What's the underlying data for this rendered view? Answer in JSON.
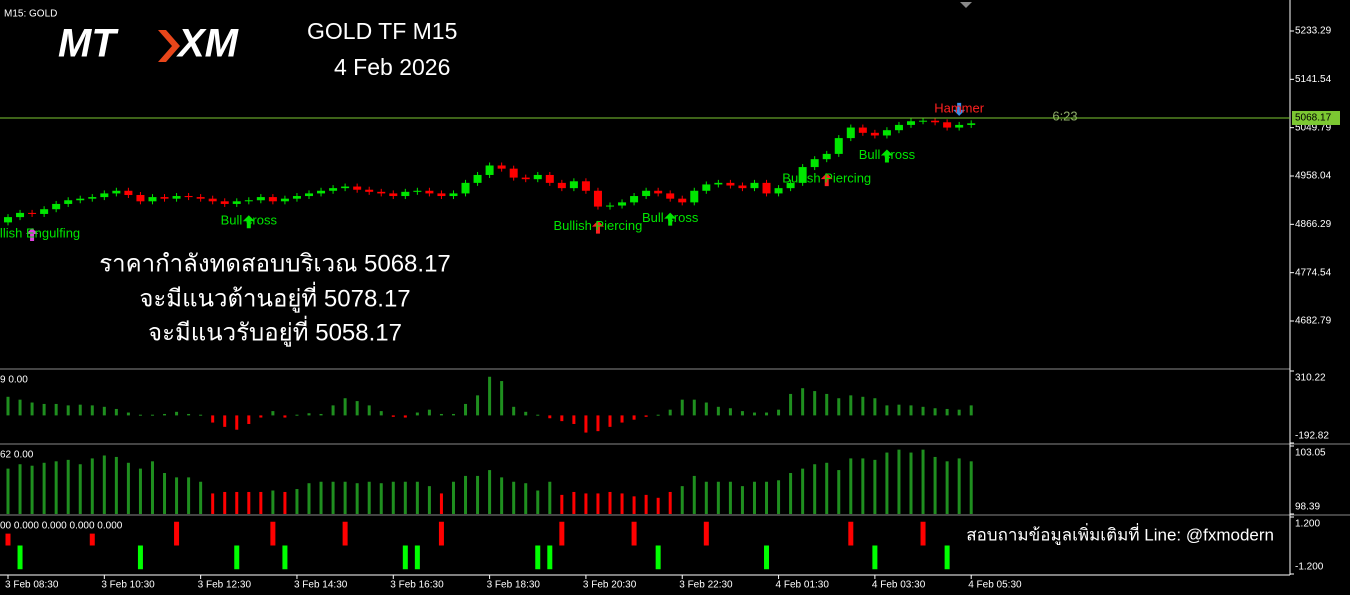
{
  "header": {
    "symbol_label": "M15:  GOLD",
    "logo_left": "MT",
    "logo_right": "XM",
    "title": "GOLD  TF  M15",
    "date": "4  Feb 2026"
  },
  "notes": [
    "ราคากำลังทดสอบบริเวณ 5068.17",
    "จะมีแนวต้านอยู่ที่ 5078.17",
    "จะมีแนวรับอยู่ที่ 5058.17"
  ],
  "footer_note": "สอบถามข้อมูลเพิ่มเติมที่ Line: @fxmodern",
  "timer": "6:23",
  "chart_data": [
    {
      "type": "candlestick",
      "categories": [
        "3 Feb 08:30",
        null,
        null,
        null,
        null,
        null,
        null,
        null,
        "3 Feb 10:30",
        null,
        null,
        null,
        null,
        null,
        null,
        null,
        "3 Feb 12:30",
        null,
        null,
        null,
        null,
        null,
        null,
        null,
        "3 Feb 14:30",
        null,
        null,
        null,
        null,
        null,
        null,
        null,
        "3 Feb 16:30",
        null,
        null,
        null,
        null,
        null,
        null,
        null,
        "3 Feb 18:30",
        null,
        null,
        null,
        null,
        null,
        null,
        null,
        "3 Feb 20:30",
        null,
        null,
        null,
        null,
        null,
        null,
        null,
        "3 Feb 22:30",
        null,
        null,
        null,
        null,
        null,
        null,
        null,
        "4 Feb 01:30",
        null,
        null,
        null,
        null,
        null,
        null,
        null,
        "4 Feb 03:30",
        null,
        null,
        null,
        null,
        null,
        null,
        null,
        "4 Feb 05:30"
      ],
      "open": [
        4870,
        4880,
        4888,
        4886,
        4895,
        4905,
        4912,
        4915,
        4918,
        4925,
        4930,
        4922,
        4910,
        4918,
        4915,
        4920,
        4918,
        4915,
        4910,
        4905,
        4910,
        4912,
        4918,
        4910,
        4915,
        4920,
        4925,
        4930,
        4935,
        4938,
        4932,
        4928,
        4925,
        4920,
        4928,
        4930,
        4925,
        4920,
        4925,
        4945,
        4960,
        4978,
        4972,
        4955,
        4952,
        4960,
        4945,
        4935,
        4948,
        4930,
        4900,
        4902,
        4908,
        4920,
        4930,
        4925,
        4915,
        4908,
        4930,
        4942,
        4945,
        4940,
        4935,
        4945,
        4925,
        4935,
        4945,
        4975,
        4990,
        5000,
        5030,
        5050,
        5040,
        5035,
        5045,
        5055,
        5062,
        5063,
        5060,
        5050,
        5055
      ],
      "close": [
        4880,
        4888,
        4886,
        4895,
        4905,
        4912,
        4915,
        4918,
        4925,
        4930,
        4922,
        4910,
        4918,
        4915,
        4920,
        4918,
        4915,
        4910,
        4905,
        4910,
        4912,
        4918,
        4910,
        4915,
        4920,
        4925,
        4930,
        4935,
        4938,
        4932,
        4928,
        4925,
        4920,
        4928,
        4930,
        4925,
        4920,
        4925,
        4945,
        4960,
        4978,
        4972,
        4955,
        4952,
        4960,
        4945,
        4935,
        4948,
        4930,
        4900,
        4902,
        4908,
        4920,
        4930,
        4925,
        4915,
        4908,
        4930,
        4942,
        4945,
        4940,
        4935,
        4945,
        4925,
        4935,
        4945,
        4975,
        4990,
        5000,
        5030,
        5050,
        5040,
        5035,
        5045,
        5055,
        5062,
        5063,
        5060,
        5050,
        5055,
        5058
      ],
      "ylim": [
        4593.57,
        5292.14
      ],
      "yticks": [
        5233.29,
        5141.54,
        5049.79,
        4958.04,
        4866.29,
        4774.54,
        4682.79
      ],
      "up_color": "#00e600",
      "down_color": "#ff0000",
      "current_price": 5068.17,
      "current_price_color": "#7cc832",
      "annotations": [
        {
          "label": "Bullish Engulfing",
          "index": 2,
          "color": "#00e600",
          "arrow": "up",
          "arrow_color": "#e040e0"
        },
        {
          "label": "Bull cross",
          "index": 20,
          "color": "#00e600",
          "arrow": "up",
          "arrow_color": "#00e600"
        },
        {
          "label": "Bullish Piercing",
          "index": 49,
          "color": "#00e600",
          "arrow": "up",
          "arrow_color": "#ff2020"
        },
        {
          "label": "Bull cross",
          "index": 55,
          "color": "#00e600",
          "arrow": "up",
          "arrow_color": "#00e600"
        },
        {
          "label": "Bullish Piercing",
          "index": 68,
          "color": "#00e600",
          "arrow": "up",
          "arrow_color": "#ff2020"
        },
        {
          "label": "Bull cross",
          "index": 73,
          "color": "#00e600",
          "arrow": "up",
          "arrow_color": "#00e600"
        },
        {
          "label": "Hammer",
          "index": 79,
          "color": "#ff2020",
          "arrow": "down",
          "arrow_color": "#3a8ee6"
        }
      ]
    },
    {
      "type": "histogram",
      "header": "9 0.00",
      "values": [
        130,
        110,
        90,
        80,
        80,
        70,
        75,
        70,
        60,
        45,
        20,
        5,
        5,
        10,
        25,
        10,
        5,
        -50,
        -80,
        -100,
        -60,
        -15,
        30,
        -15,
        5,
        15,
        10,
        70,
        120,
        100,
        70,
        30,
        -10,
        -15,
        20,
        40,
        10,
        10,
        80,
        140,
        270,
        240,
        60,
        25,
        5,
        -20,
        -40,
        -60,
        -120,
        -110,
        -80,
        -50,
        -30,
        -10,
        5,
        40,
        110,
        110,
        90,
        60,
        50,
        30,
        20,
        20,
        40,
        150,
        190,
        170,
        150,
        120,
        140,
        130,
        120,
        70,
        75,
        70,
        60,
        50,
        45,
        40,
        70
      ],
      "ylim": [
        -192.82,
        310.22
      ],
      "yticks": [
        310.22,
        -192.82
      ],
      "up_color": "#1f8f1f",
      "down_color": "#ff0000"
    },
    {
      "type": "volume",
      "header": "62 0.00",
      "values": [
        101.5,
        101.8,
        101.7,
        101.9,
        102.0,
        102.1,
        101.8,
        102.2,
        102.4,
        102.3,
        101.9,
        101.5,
        102.0,
        101.2,
        100.9,
        100.9,
        100.6,
        99.8,
        99.9,
        99.9,
        99.9,
        99.9,
        100.0,
        99.9,
        100.1,
        100.5,
        100.6,
        100.6,
        100.6,
        100.5,
        100.6,
        100.5,
        100.6,
        100.6,
        100.6,
        100.3,
        99.8,
        100.6,
        101.0,
        101.0,
        101.4,
        100.9,
        100.6,
        100.5,
        100.0,
        100.6,
        99.7,
        99.9,
        99.8,
        99.8,
        99.9,
        99.8,
        99.6,
        99.7,
        99.5,
        99.9,
        100.3,
        101.0,
        100.6,
        100.6,
        100.6,
        100.3,
        100.6,
        100.6,
        100.7,
        101.2,
        101.5,
        101.8,
        101.9,
        101.4,
        102.2,
        102.2,
        102.1,
        102.6,
        102.8,
        102.6,
        102.8,
        102.3,
        102.0,
        102.2,
        102.0
      ],
      "ylim": [
        98.39,
        103.05
      ],
      "yticks": [
        103.05,
        98.39
      ],
      "up_color": "#1f8f1f",
      "down_color": "#ff0000"
    },
    {
      "type": "signal",
      "header": "00 0.000 0.000 0.000 0.000",
      "values": [
        0.5,
        -1,
        0,
        0,
        0,
        0,
        0,
        0.5,
        0,
        0,
        0,
        -1,
        0,
        0,
        1,
        0,
        0,
        0,
        0,
        -1,
        0,
        0,
        1,
        -1,
        0,
        0,
        0,
        0,
        1,
        0,
        0,
        0,
        0,
        -1,
        -1,
        0,
        1,
        0,
        0,
        0,
        0,
        0,
        0,
        0,
        -1,
        -1,
        1,
        0,
        0,
        0,
        0,
        0,
        1,
        0,
        -1,
        0,
        0,
        0,
        1,
        0,
        0,
        0,
        0,
        -1,
        0,
        0,
        0,
        0,
        0,
        0,
        1,
        0,
        -1,
        0,
        0,
        0,
        1,
        0,
        -1,
        0,
        0
      ],
      "ylim": [
        -1.2,
        1.2
      ],
      "yticks": [
        {
          "value": 1.2,
          "label": "1.200"
        },
        {
          "value": -1.2,
          "label": "-1.200"
        }
      ],
      "up_color": "#ff0000",
      "down_color": "#00ff00"
    }
  ]
}
